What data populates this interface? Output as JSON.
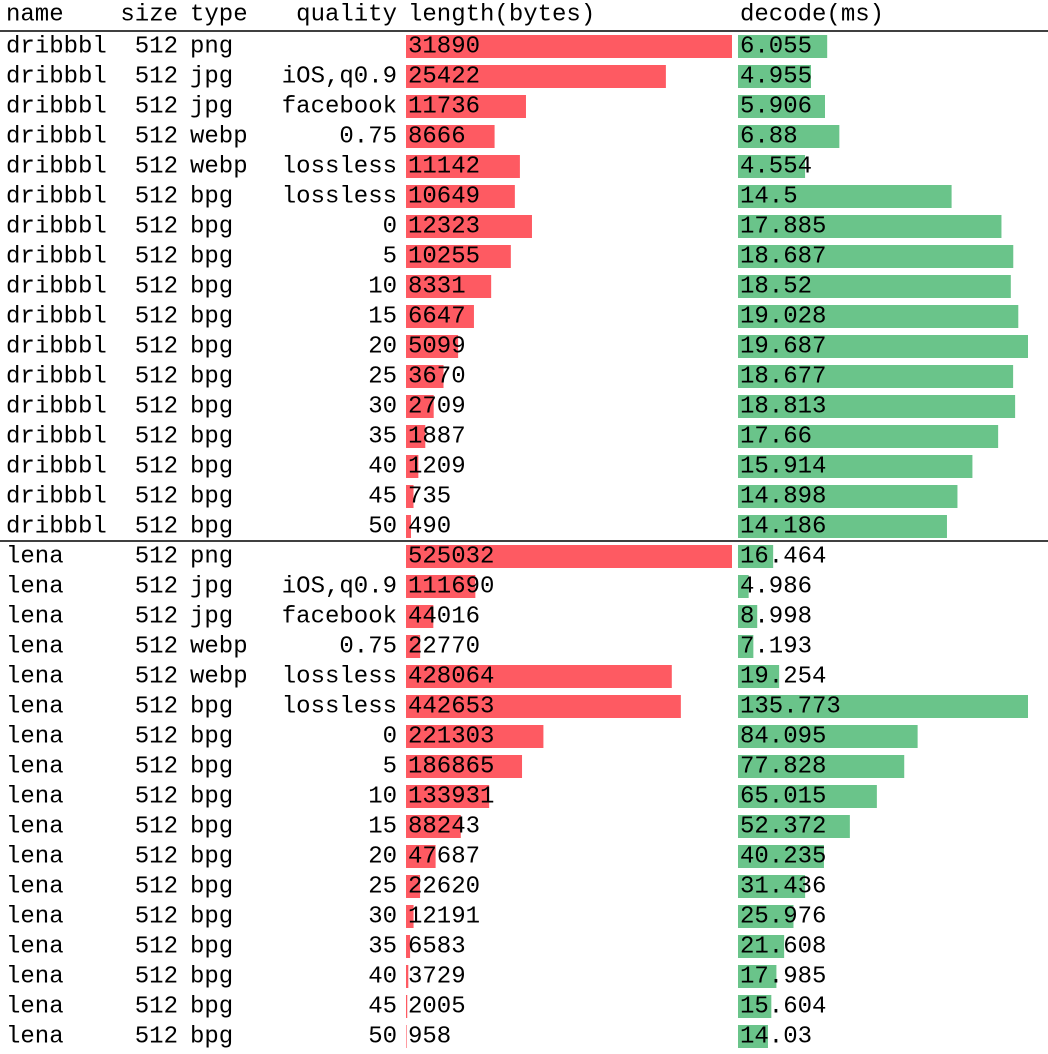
{
  "header": [
    "name",
    "size",
    "type",
    "quality",
    "length(bytes)",
    "decode(ms)"
  ],
  "groups": [
    {
      "rows": [
        {
          "name": "dribbbl",
          "size": 512,
          "type": "png",
          "quality": null,
          "length": 31890,
          "decode": 6.055
        },
        {
          "name": "dribbbl",
          "size": 512,
          "type": "jpg",
          "quality": "iOS,q0.9",
          "length": 25422,
          "decode": 4.955
        },
        {
          "name": "dribbbl",
          "size": 512,
          "type": "jpg",
          "quality": "facebook",
          "length": 11736,
          "decode": 5.906
        },
        {
          "name": "dribbbl",
          "size": 512,
          "type": "webp",
          "quality": 0.75,
          "length": 8666,
          "decode": 6.88
        },
        {
          "name": "dribbbl",
          "size": 512,
          "type": "webp",
          "quality": "lossless",
          "length": 11142,
          "decode": 4.554
        },
        {
          "name": "dribbbl",
          "size": 512,
          "type": "bpg",
          "quality": "lossless",
          "length": 10649,
          "decode": 14.5
        },
        {
          "name": "dribbbl",
          "size": 512,
          "type": "bpg",
          "quality": 0,
          "length": 12323,
          "decode": 17.885
        },
        {
          "name": "dribbbl",
          "size": 512,
          "type": "bpg",
          "quality": 5,
          "length": 10255,
          "decode": 18.687
        },
        {
          "name": "dribbbl",
          "size": 512,
          "type": "bpg",
          "quality": 10,
          "length": 8331,
          "decode": 18.52
        },
        {
          "name": "dribbbl",
          "size": 512,
          "type": "bpg",
          "quality": 15,
          "length": 6647,
          "decode": 19.028
        },
        {
          "name": "dribbbl",
          "size": 512,
          "type": "bpg",
          "quality": 20,
          "length": 5099,
          "decode": 19.687
        },
        {
          "name": "dribbbl",
          "size": 512,
          "type": "bpg",
          "quality": 25,
          "length": 3670,
          "decode": 18.677
        },
        {
          "name": "dribbbl",
          "size": 512,
          "type": "bpg",
          "quality": 30,
          "length": 2709,
          "decode": 18.813
        },
        {
          "name": "dribbbl",
          "size": 512,
          "type": "bpg",
          "quality": 35,
          "length": 1887,
          "decode": 17.66
        },
        {
          "name": "dribbbl",
          "size": 512,
          "type": "bpg",
          "quality": 40,
          "length": 1209,
          "decode": 15.914
        },
        {
          "name": "dribbbl",
          "size": 512,
          "type": "bpg",
          "quality": 45,
          "length": 735,
          "decode": 14.898
        },
        {
          "name": "dribbbl",
          "size": 512,
          "type": "bpg",
          "quality": 50,
          "length": 490,
          "decode": 14.186
        }
      ]
    },
    {
      "rows": [
        {
          "name": "lena",
          "size": 512,
          "type": "png",
          "quality": null,
          "length": 525032,
          "decode": 16.464
        },
        {
          "name": "lena",
          "size": 512,
          "type": "jpg",
          "quality": "iOS,q0.9",
          "length": 111690,
          "decode": 4.986
        },
        {
          "name": "lena",
          "size": 512,
          "type": "jpg",
          "quality": "facebook",
          "length": 44016,
          "decode": 8.998
        },
        {
          "name": "lena",
          "size": 512,
          "type": "webp",
          "quality": 0.75,
          "length": 22770,
          "decode": 7.193
        },
        {
          "name": "lena",
          "size": 512,
          "type": "webp",
          "quality": "lossless",
          "length": 428064,
          "decode": 19.254
        },
        {
          "name": "lena",
          "size": 512,
          "type": "bpg",
          "quality": "lossless",
          "length": 442653,
          "decode": 135.773
        },
        {
          "name": "lena",
          "size": 512,
          "type": "bpg",
          "quality": 0,
          "length": 221303,
          "decode": 84.095
        },
        {
          "name": "lena",
          "size": 512,
          "type": "bpg",
          "quality": 5,
          "length": 186865,
          "decode": 77.828
        },
        {
          "name": "lena",
          "size": 512,
          "type": "bpg",
          "quality": 10,
          "length": 133931,
          "decode": 65.015
        },
        {
          "name": "lena",
          "size": 512,
          "type": "bpg",
          "quality": 15,
          "length": 88243,
          "decode": 52.372
        },
        {
          "name": "lena",
          "size": 512,
          "type": "bpg",
          "quality": 20,
          "length": 47687,
          "decode": 40.235
        },
        {
          "name": "lena",
          "size": 512,
          "type": "bpg",
          "quality": 25,
          "length": 22620,
          "decode": 31.436
        },
        {
          "name": "lena",
          "size": 512,
          "type": "bpg",
          "quality": 30,
          "length": 12191,
          "decode": 25.976
        },
        {
          "name": "lena",
          "size": 512,
          "type": "bpg",
          "quality": 35,
          "length": 6583,
          "decode": 21.608
        },
        {
          "name": "lena",
          "size": 512,
          "type": "bpg",
          "quality": 40,
          "length": 3729,
          "decode": 17.985
        },
        {
          "name": "lena",
          "size": 512,
          "type": "bpg",
          "quality": 45,
          "length": 2005,
          "decode": 15.604
        },
        {
          "name": "lena",
          "size": 512,
          "type": "bpg",
          "quality": 50,
          "length": 958,
          "decode": 14.03
        }
      ]
    }
  ]
}
